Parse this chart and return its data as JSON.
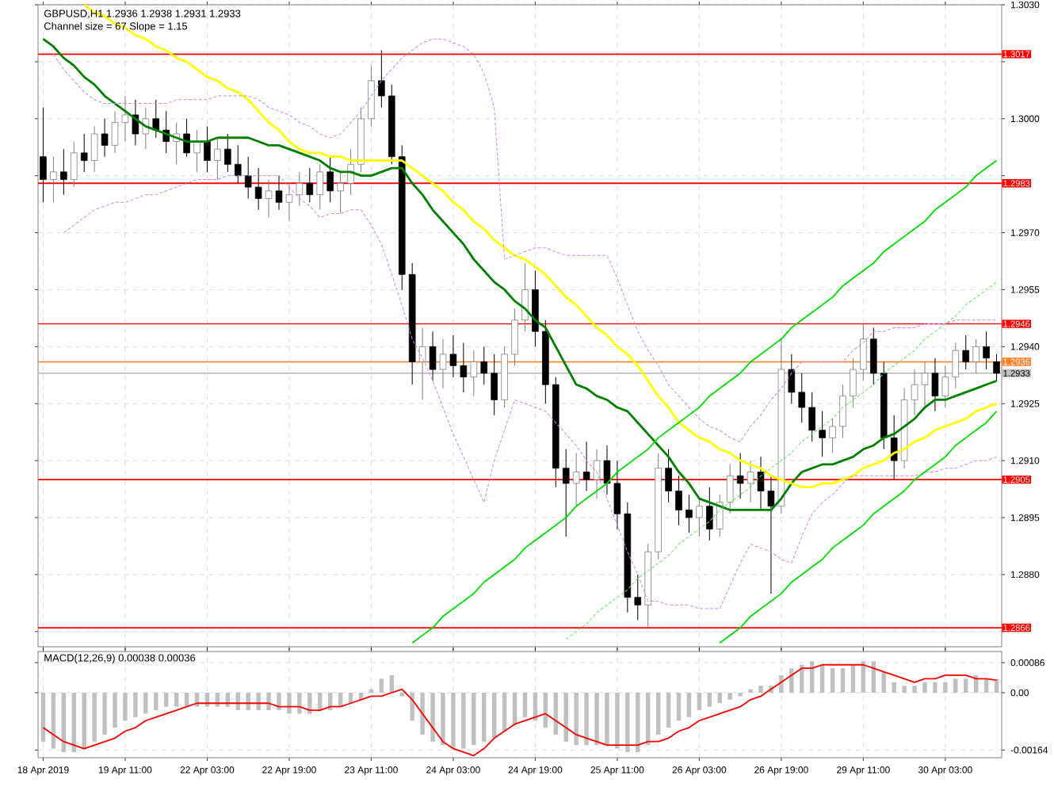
{
  "chart_data": [
    {
      "type": "candlestick",
      "title": "GBPUSD,H1  1.2936 1.2938 1.2931 1.2933",
      "subtitle": "Channel size = 67 Slope = 1.15",
      "categories": [
        null,
        null,
        null,
        null,
        null,
        null,
        null,
        null,
        null,
        null,
        null,
        null,
        null,
        null,
        null,
        null,
        null,
        null,
        null,
        null,
        null,
        null,
        null,
        null,
        null,
        null,
        null,
        null,
        null,
        null,
        null,
        null,
        null,
        null,
        null,
        null,
        null,
        null,
        null,
        null,
        null,
        null,
        null,
        null,
        null,
        null,
        null,
        null,
        null,
        null,
        null,
        null,
        null,
        null,
        null,
        null,
        null,
        null,
        null,
        null,
        null,
        null,
        null,
        null,
        null,
        null,
        null,
        null,
        null,
        null,
        null,
        null,
        null,
        null,
        null,
        null,
        null,
        null,
        null,
        null,
        null,
        null,
        null,
        null,
        null,
        null,
        null,
        null,
        null,
        null,
        null,
        null,
        null,
        null
      ],
      "ohlc": [
        [
          1.299,
          1.3003,
          1.2978,
          1.2984
        ],
        [
          1.2984,
          1.299,
          1.2978,
          1.2986
        ],
        [
          1.2986,
          1.2992,
          1.298,
          1.2984
        ],
        [
          1.2984,
          1.2994,
          1.2982,
          1.2991
        ],
        [
          1.2991,
          1.2996,
          1.2986,
          1.2989
        ],
        [
          1.2989,
          1.2998,
          1.2986,
          1.2996
        ],
        [
          1.2996,
          1.3,
          1.299,
          1.2993
        ],
        [
          1.2993,
          1.3002,
          1.2991,
          1.2999
        ],
        [
          1.2999,
          1.3006,
          1.2994,
          1.3001
        ],
        [
          1.3001,
          1.3005,
          1.2993,
          1.2996
        ],
        [
          1.2996,
          1.3003,
          1.2992,
          1.3
        ],
        [
          1.3,
          1.3005,
          1.2995,
          1.2997
        ],
        [
          1.2997,
          1.3002,
          1.2991,
          1.2994
        ],
        [
          1.2994,
          1.2999,
          1.2988,
          1.2996
        ],
        [
          1.2996,
          1.3,
          1.299,
          1.2991
        ],
        [
          1.2991,
          1.2997,
          1.2986,
          1.2994
        ],
        [
          1.2994,
          1.2998,
          1.2986,
          1.2989
        ],
        [
          1.2989,
          1.2995,
          1.2984,
          1.2992
        ],
        [
          1.2992,
          1.2996,
          1.2986,
          1.2988
        ],
        [
          1.2988,
          1.2993,
          1.2983,
          1.2985
        ],
        [
          1.2985,
          1.299,
          1.2979,
          1.2982
        ],
        [
          1.2982,
          1.2987,
          1.2976,
          1.2979
        ],
        [
          1.2979,
          1.2984,
          1.2974,
          1.2981
        ],
        [
          1.2981,
          1.2985,
          1.2976,
          1.2978
        ],
        [
          1.2978,
          1.2983,
          1.2973,
          1.298
        ],
        [
          1.298,
          1.2986,
          1.2977,
          1.2983
        ],
        [
          1.2983,
          1.2987,
          1.2978,
          1.298
        ],
        [
          1.298,
          1.2988,
          1.2976,
          1.2986
        ],
        [
          1.2986,
          1.299,
          1.2978,
          1.2981
        ],
        [
          1.2981,
          1.2986,
          1.2975,
          1.2983
        ],
        [
          1.2983,
          1.2992,
          1.298,
          1.2988
        ],
        [
          1.2988,
          1.3003,
          1.2986,
          1.3
        ],
        [
          1.3,
          1.3014,
          1.2998,
          1.301
        ],
        [
          1.301,
          1.3018,
          1.3003,
          1.3006
        ],
        [
          1.3006,
          1.3009,
          1.2988,
          1.299
        ],
        [
          1.299,
          1.2993,
          1.2955,
          1.2959
        ],
        [
          1.2959,
          1.2962,
          1.293,
          1.2936
        ],
        [
          1.2936,
          1.2945,
          1.2926,
          1.294
        ],
        [
          1.294,
          1.2944,
          1.2931,
          1.2934
        ],
        [
          1.2934,
          1.2942,
          1.2929,
          1.2938
        ],
        [
          1.2938,
          1.2943,
          1.2932,
          1.2935
        ],
        [
          1.2935,
          1.2941,
          1.2928,
          1.2932
        ],
        [
          1.2932,
          1.2939,
          1.2927,
          1.2936
        ],
        [
          1.2936,
          1.294,
          1.293,
          1.2933
        ],
        [
          1.2933,
          1.2938,
          1.2922,
          1.2926
        ],
        [
          1.2926,
          1.294,
          1.2924,
          1.2938
        ],
        [
          1.2938,
          1.295,
          1.2935,
          1.2947
        ],
        [
          1.2947,
          1.2962,
          1.2944,
          1.2955
        ],
        [
          1.2955,
          1.296,
          1.294,
          1.2944
        ],
        [
          1.2944,
          1.2947,
          1.2925,
          1.293
        ],
        [
          1.293,
          1.2932,
          1.2903,
          1.2908
        ],
        [
          1.2908,
          1.2913,
          1.289,
          1.2904
        ],
        [
          1.2904,
          1.2912,
          1.2898,
          1.2907
        ],
        [
          1.2907,
          1.2915,
          1.2902,
          1.2905
        ],
        [
          1.2905,
          1.2913,
          1.29,
          1.291
        ],
        [
          1.291,
          1.2914,
          1.2901,
          1.2904
        ],
        [
          1.2904,
          1.291,
          1.2892,
          1.2896
        ],
        [
          1.2896,
          1.2899,
          1.287,
          1.2874
        ],
        [
          1.2874,
          1.288,
          1.2868,
          1.2872
        ],
        [
          1.2872,
          1.2888,
          1.2866,
          1.2886
        ],
        [
          1.2886,
          1.2912,
          1.2884,
          1.2908
        ],
        [
          1.2908,
          1.2913,
          1.2899,
          1.2902
        ],
        [
          1.2902,
          1.2906,
          1.2893,
          1.2897
        ],
        [
          1.2897,
          1.2901,
          1.2891,
          1.2895
        ],
        [
          1.2895,
          1.29,
          1.289,
          1.2898
        ],
        [
          1.2898,
          1.2903,
          1.2889,
          1.2892
        ],
        [
          1.2892,
          1.2901,
          1.289,
          1.2899
        ],
        [
          1.2899,
          1.2909,
          1.2896,
          1.2906
        ],
        [
          1.2906,
          1.2912,
          1.29,
          1.2904
        ],
        [
          1.2904,
          1.291,
          1.2899,
          1.2907
        ],
        [
          1.2907,
          1.2911,
          1.2897,
          1.2902
        ],
        [
          1.2902,
          1.2906,
          1.2875,
          1.2898
        ],
        [
          1.2898,
          1.2942,
          1.2896,
          1.2934
        ],
        [
          1.2934,
          1.2938,
          1.2925,
          1.2928
        ],
        [
          1.2928,
          1.2933,
          1.292,
          1.2924
        ],
        [
          1.2924,
          1.2928,
          1.2915,
          1.2918
        ],
        [
          1.2918,
          1.2923,
          1.2911,
          1.2916
        ],
        [
          1.2916,
          1.2921,
          1.2912,
          1.2919
        ],
        [
          1.2919,
          1.293,
          1.2916,
          1.2927
        ],
        [
          1.2927,
          1.2937,
          1.2924,
          1.2934
        ],
        [
          1.2934,
          1.2946,
          1.2931,
          1.2942
        ],
        [
          1.2942,
          1.2945,
          1.293,
          1.2933
        ],
        [
          1.2933,
          1.2936,
          1.2913,
          1.2916
        ],
        [
          1.2916,
          1.2922,
          1.2905,
          1.291
        ],
        [
          1.291,
          1.2929,
          1.2908,
          1.2926
        ],
        [
          1.2926,
          1.2934,
          1.2922,
          1.293
        ],
        [
          1.293,
          1.2936,
          1.2924,
          1.2933
        ],
        [
          1.2933,
          1.2937,
          1.2923,
          1.2927
        ],
        [
          1.2927,
          1.2935,
          1.2924,
          1.2932
        ],
        [
          1.2932,
          1.2941,
          1.2929,
          1.2939
        ],
        [
          1.2939,
          1.2943,
          1.2934,
          1.2936
        ],
        [
          1.2936,
          1.2942,
          1.2933,
          1.294
        ],
        [
          1.294,
          1.2944,
          1.2934,
          1.2937
        ],
        [
          1.2936,
          1.2938,
          1.2931,
          1.2933
        ]
      ],
      "series": [
        {
          "type": "line",
          "color": "#008000",
          "line_style": "solid",
          "values": [
            1.3021,
            1.3019,
            1.3016,
            1.3014,
            1.3011,
            1.3009,
            1.3006,
            1.3004,
            1.3002,
            1.3,
            1.2998,
            1.2997,
            1.2996,
            1.2995,
            1.2994,
            1.2994,
            1.2994,
            1.2995,
            1.2995,
            1.2995,
            1.2995,
            1.2994,
            1.2993,
            1.2993,
            1.2992,
            1.2991,
            1.299,
            1.2989,
            1.2987,
            1.2986,
            1.2986,
            1.2985,
            1.2985,
            1.2986,
            1.2987,
            1.2987,
            1.2983,
            1.298,
            1.2976,
            1.2973,
            1.297,
            1.2967,
            1.2963,
            1.296,
            1.2957,
            1.2955,
            1.2952,
            1.295,
            1.2947,
            1.2945,
            1.294,
            1.2935,
            1.293,
            1.2929,
            1.2927,
            1.2926,
            1.2924,
            1.2923,
            1.292,
            1.2917,
            1.2914,
            1.2911,
            1.2907,
            1.2904,
            1.29,
            1.2899,
            1.2898,
            1.2897,
            1.2897,
            1.2897,
            1.2897,
            1.2897,
            1.29,
            1.2904,
            1.2907,
            1.2908,
            1.2909,
            1.2909,
            1.291,
            1.2911,
            1.2913,
            1.2914,
            1.2916,
            1.2917,
            1.2919,
            1.2921,
            1.2924,
            1.2926,
            1.2926,
            1.2927,
            1.2928,
            1.2929,
            1.293,
            1.2931
          ]
        },
        {
          "type": "line",
          "color": "#ffff00",
          "line_style": "solid",
          "values": [
            null,
            null,
            null,
            null,
            1.303,
            1.3028,
            1.3027,
            1.3025,
            1.3024,
            1.3022,
            1.3021,
            1.3019,
            1.3018,
            1.3016,
            1.3015,
            1.3013,
            1.3011,
            1.301,
            1.3008,
            1.3007,
            1.3005,
            1.3002,
            1.2999,
            1.2997,
            1.2994,
            1.2992,
            1.2991,
            1.2991,
            1.299,
            1.299,
            1.2989,
            1.2989,
            1.2989,
            1.2989,
            1.2989,
            1.2989,
            1.2987,
            1.2985,
            1.2983,
            1.2981,
            1.2978,
            1.2976,
            1.2973,
            1.2971,
            1.2968,
            1.2966,
            1.2964,
            1.2963,
            1.2961,
            1.2959,
            1.2956,
            1.2953,
            1.2951,
            1.2948,
            1.2945,
            1.2943,
            1.294,
            1.2938,
            1.2935,
            1.2931,
            1.2927,
            1.2924,
            1.292,
            1.2918,
            1.2916,
            1.2915,
            1.2913,
            1.2912,
            1.291,
            1.2909,
            1.2908,
            1.2906,
            1.2905,
            1.2904,
            1.2903,
            1.2903,
            1.2904,
            1.2904,
            1.2905,
            1.2906,
            1.2908,
            1.2909,
            1.291,
            1.2912,
            1.2913,
            1.2915,
            1.2916,
            1.2918,
            1.2919,
            1.292,
            1.2921,
            1.2923,
            1.2924,
            1.2925
          ]
        },
        {
          "type": "line",
          "color": "#cc88ee",
          "line_style": "dashed",
          "values": [
            null,
            1.3017,
            1.3013,
            1.301,
            1.3007,
            1.3005,
            1.3004,
            1.3004,
            1.3004,
            1.3004,
            1.3004,
            1.3004,
            1.3004,
            1.3005,
            1.3005,
            1.3005,
            1.3005,
            1.3006,
            1.3006,
            1.3006,
            1.3006,
            1.3005,
            1.3003,
            1.3002,
            1.3001,
            1.2999,
            1.2998,
            1.2996,
            1.2995,
            1.2996,
            1.2999,
            1.3002,
            1.3006,
            1.301,
            1.3013,
            1.3016,
            1.3018,
            1.302,
            1.3021,
            1.3021,
            1.302,
            1.3019,
            1.3017,
            1.3012,
            1.3003,
            1.2963,
            1.2964,
            1.2965,
            1.2966,
            1.2966,
            1.2965,
            1.2964,
            1.2964,
            1.2964,
            1.2964,
            1.2964,
            1.2958,
            1.2951,
            1.2944,
            1.2939,
            1.2935,
            1.293,
            1.2927,
            1.2924,
            1.2921,
            1.2919,
            1.2918,
            1.2916,
            1.2915,
            1.2919,
            1.2922,
            1.2926,
            1.2929,
            1.2933,
            1.2936,
            1.2936,
            1.2936,
            1.2936,
            1.2936,
            1.2939,
            1.2941,
            1.2944,
            1.2944,
            1.2945,
            1.2945,
            1.2945,
            1.2946,
            1.2946,
            1.2946,
            1.2947,
            1.2947,
            1.2947,
            1.2947,
            1.2947
          ]
        },
        {
          "type": "line",
          "color": "#cc88ee",
          "line_style": "dashed",
          "values": [
            null,
            null,
            1.297,
            1.2972,
            1.2974,
            1.2976,
            1.2977,
            1.2978,
            1.2978,
            1.2979,
            1.298,
            1.298,
            1.2981,
            1.2982,
            1.2983,
            1.2984,
            1.2984,
            1.2984,
            1.2985,
            1.2985,
            1.2985,
            1.2985,
            1.2985,
            1.2985,
            1.2982,
            1.2979,
            1.2977,
            1.2974,
            1.2975,
            1.2975,
            1.2976,
            1.2976,
            1.2972,
            1.2967,
            1.2959,
            1.2951,
            1.2942,
            1.2937,
            1.2931,
            1.2924,
            1.2917,
            1.2911,
            1.2905,
            1.2899,
            1.291,
            1.2918,
            1.2926,
            1.2925,
            1.2924,
            1.2923,
            1.292,
            1.2917,
            1.2914,
            1.291,
            1.2907,
            1.29,
            1.2893,
            1.2886,
            1.288,
            1.2873,
            1.2873,
            1.2872,
            1.2872,
            1.2872,
            1.2871,
            1.2871,
            1.2871,
            1.2877,
            1.2883,
            1.2888,
            1.2887,
            1.2886,
            1.2884,
            1.2883,
            1.289,
            1.2896,
            1.2899,
            1.2901,
            1.2904,
            1.2906,
            1.2906,
            1.2906,
            1.2906,
            1.2906,
            1.2906,
            1.2906,
            1.2907,
            1.2907,
            1.2908,
            1.2908,
            1.2909,
            1.291,
            1.291,
            1.2911
          ]
        },
        {
          "type": "line",
          "color": "#00e000",
          "line_style": "solid",
          "values": [
            null,
            null,
            null,
            null,
            null,
            null,
            null,
            null,
            null,
            null,
            null,
            null,
            null,
            null,
            null,
            null,
            null,
            null,
            null,
            null,
            null,
            null,
            null,
            null,
            null,
            null,
            null,
            null,
            null,
            null,
            null,
            null,
            null,
            null,
            null,
            null,
            1.2862,
            1.2864,
            1.2866,
            1.2869,
            1.2871,
            1.2873,
            1.2875,
            1.2878,
            1.288,
            1.2882,
            1.2884,
            1.2887,
            1.2889,
            1.2891,
            1.2893,
            1.2895,
            1.2898,
            1.29,
            1.2902,
            1.2904,
            1.2907,
            1.2909,
            1.2911,
            1.2913,
            1.2916,
            1.2918,
            1.292,
            1.2922,
            1.2924,
            1.2927,
            1.2929,
            1.2931,
            1.2933,
            1.2936,
            1.2938,
            1.294,
            1.2942,
            1.2945,
            1.2947,
            1.2949,
            1.2951,
            1.2953,
            1.2956,
            1.2958,
            1.296,
            1.2962,
            1.2965,
            1.2967,
            1.2969,
            1.2971,
            1.2973,
            1.2976,
            1.2978,
            1.298,
            1.2982,
            1.2985,
            1.2987,
            1.2989
          ]
        },
        {
          "type": "line",
          "color": "#00e000",
          "line_style": "solid",
          "values": [
            null,
            null,
            null,
            null,
            null,
            null,
            null,
            null,
            null,
            null,
            null,
            null,
            null,
            null,
            null,
            null,
            null,
            null,
            null,
            null,
            null,
            null,
            null,
            null,
            null,
            null,
            null,
            null,
            null,
            null,
            null,
            null,
            null,
            null,
            null,
            null,
            null,
            null,
            null,
            null,
            null,
            null,
            null,
            null,
            null,
            null,
            null,
            null,
            null,
            null,
            null,
            null,
            null,
            null,
            null,
            null,
            null,
            null,
            null,
            null,
            null,
            null,
            null,
            null,
            null,
            null,
            1.2862,
            1.2864,
            1.2866,
            1.2869,
            1.2871,
            1.2873,
            1.2875,
            1.2878,
            1.288,
            1.2882,
            1.2884,
            1.2887,
            1.2889,
            1.2891,
            1.2893,
            1.2896,
            1.2898,
            1.29,
            1.2902,
            1.2905,
            1.2907,
            1.2909,
            1.2911,
            1.2914,
            1.2916,
            1.2918,
            1.292,
            1.2923
          ]
        },
        {
          "type": "line",
          "color": "#66e066",
          "line_style": "dashed",
          "values": [
            null,
            null,
            null,
            null,
            null,
            null,
            null,
            null,
            null,
            null,
            null,
            null,
            null,
            null,
            null,
            null,
            null,
            null,
            null,
            null,
            null,
            null,
            null,
            null,
            null,
            null,
            null,
            null,
            null,
            null,
            null,
            null,
            null,
            null,
            null,
            null,
            null,
            null,
            null,
            null,
            null,
            null,
            null,
            null,
            null,
            null,
            null,
            null,
            null,
            null,
            null,
            1.2863,
            1.2865,
            1.2867,
            1.287,
            1.2872,
            1.2874,
            1.2876,
            1.2879,
            1.2881,
            1.2883,
            1.2885,
            1.2888,
            1.289,
            1.2892,
            1.2894,
            1.2897,
            1.2899,
            1.2901,
            1.2903,
            1.2906,
            1.2908,
            1.291,
            1.2912,
            1.2915,
            1.2917,
            1.2919,
            1.2921,
            1.2924,
            1.2926,
            1.2928,
            1.293,
            1.2933,
            1.2935,
            1.2937,
            1.2939,
            1.2942,
            1.2944,
            1.2946,
            1.2948,
            1.2951,
            1.2953,
            1.2955,
            1.2957
          ]
        }
      ],
      "ylim": [
        1.2861,
        1.303
      ],
      "yticks": [
        {
          "value": 1.303,
          "label": "1.3030"
        },
        {
          "value": 1.3015,
          "label": null
        },
        {
          "value": 1.3,
          "label": "1.3000"
        },
        {
          "value": 1.2985,
          "label": null
        },
        {
          "value": 1.297,
          "label": "1.2970"
        },
        {
          "value": 1.2955,
          "label": "1.2955"
        },
        {
          "value": 1.294,
          "label": "1.2940"
        },
        {
          "value": 1.2925,
          "label": "1.2925"
        },
        {
          "value": 1.291,
          "label": "1.2910"
        },
        {
          "value": 1.2895,
          "label": "1.2895"
        },
        {
          "value": 1.288,
          "label": "1.2880"
        },
        {
          "value": 1.2865,
          "label": null
        }
      ],
      "ref_lines": [
        {
          "axis": "y",
          "value": 1.3017,
          "label": "1.3017",
          "color": "#ff0000"
        },
        {
          "axis": "y",
          "value": 1.2983,
          "label": "1.2983",
          "color": "#ff0000"
        },
        {
          "axis": "y",
          "value": 1.2946,
          "label": "1.2946",
          "color": "#ff0000"
        },
        {
          "axis": "y",
          "value": 1.2936,
          "label": "1.2936",
          "color": "#ff7f27"
        },
        {
          "axis": "y",
          "value": 1.2933,
          "label": "1.2933",
          "color": "#c0c0c0"
        },
        {
          "axis": "y",
          "value": 1.2905,
          "label": "1.2905",
          "color": "#ff0000"
        },
        {
          "axis": "y",
          "value": 1.2866,
          "label": "1.2866",
          "color": "#ff0000"
        }
      ],
      "grid": true,
      "tick_labels": "y"
    },
    {
      "type": "bar",
      "title": "MACD(12,26,9) 0.00038 0.00036",
      "categories": [
        "18 Apr 2019",
        null,
        null,
        null,
        null,
        null,
        null,
        null,
        "19 Apr 11:00",
        null,
        null,
        null,
        null,
        null,
        null,
        null,
        "22 Apr 03:00",
        null,
        null,
        null,
        null,
        null,
        null,
        null,
        "22 Apr 19:00",
        null,
        null,
        null,
        null,
        null,
        null,
        null,
        "23 Apr 11:00",
        null,
        null,
        null,
        null,
        null,
        null,
        null,
        "24 Apr 03:00",
        null,
        null,
        null,
        null,
        null,
        null,
        null,
        "24 Apr 19:00",
        null,
        null,
        null,
        null,
        null,
        null,
        null,
        "25 Apr 11:00",
        null,
        null,
        null,
        null,
        null,
        null,
        null,
        "26 Apr 03:00",
        null,
        null,
        null,
        null,
        null,
        null,
        null,
        "26 Apr 19:00",
        null,
        null,
        null,
        null,
        null,
        null,
        null,
        "29 Apr 11:00",
        null,
        null,
        null,
        null,
        null,
        null,
        null,
        "30 Apr 03:00",
        null,
        null,
        null,
        null,
        null
      ],
      "series": [
        {
          "type": "bar",
          "color": "#c0c0c0",
          "values": [
            -0.0014,
            -0.0016,
            -0.0017,
            -0.0017,
            -0.0016,
            -0.0014,
            -0.0012,
            -0.001,
            -0.0008,
            -0.0007,
            -0.0006,
            -0.0005,
            -0.0004,
            -0.0004,
            -0.0004,
            -0.0004,
            -0.0004,
            -0.0004,
            -0.0004,
            -0.0005,
            -0.0005,
            -0.0005,
            -0.0005,
            -0.0005,
            -0.0006,
            -0.0006,
            -0.0006,
            -0.0005,
            -0.0005,
            -0.0004,
            -0.0003,
            -0.0002,
            0.0001,
            0.0004,
            0.0005,
            -0.0001,
            -0.0008,
            -0.0012,
            -0.0014,
            -0.0015,
            -0.0016,
            -0.0016,
            -0.0015,
            -0.0014,
            -0.0013,
            -0.0011,
            -0.0009,
            -0.0007,
            -0.0008,
            -0.001,
            -0.0012,
            -0.0014,
            -0.0015,
            -0.0015,
            -0.0015,
            -0.0015,
            -0.0016,
            -0.0017,
            -0.0017,
            -0.0015,
            -0.0012,
            -0.001,
            -0.0008,
            -0.0007,
            -0.0005,
            -0.0004,
            -0.0003,
            -0.0002,
            -0.0001,
            0.0001,
            0.0002,
            0.0002,
            0.0005,
            0.0007,
            0.0008,
            0.0009,
            0.0008,
            0.0007,
            0.0007,
            0.0008,
            0.0009,
            0.0009,
            0.0006,
            0.0003,
            0.0002,
            0.0002,
            0.0003,
            0.0003,
            0.0003,
            0.0004,
            0.0004,
            0.0005,
            0.0004,
            0.00038
          ]
        },
        {
          "type": "line",
          "color": "#ff0000",
          "line_style": "solid",
          "values": [
            -0.001,
            -0.0012,
            -0.0014,
            -0.0015,
            -0.0016,
            -0.0015,
            -0.0014,
            -0.0013,
            -0.0011,
            -0.001,
            -0.0008,
            -0.0007,
            -0.0006,
            -0.0005,
            -0.0004,
            -0.0003,
            -0.0003,
            -0.0003,
            -0.0003,
            -0.0003,
            -0.0003,
            -0.0003,
            -0.0003,
            -0.0004,
            -0.0004,
            -0.0004,
            -0.0005,
            -0.0005,
            -0.0004,
            -0.0004,
            -0.0003,
            -0.0002,
            -0.0001,
            -0.0001,
            0.0,
            0.0001,
            -0.0002,
            -0.0006,
            -0.001,
            -0.0014,
            -0.0016,
            -0.0017,
            -0.0018,
            -0.0016,
            -0.0013,
            -0.0011,
            -0.0009,
            -0.0008,
            -0.0007,
            -0.0006,
            -0.0008,
            -0.001,
            -0.0012,
            -0.0013,
            -0.0014,
            -0.0015,
            -0.0015,
            -0.0015,
            -0.0015,
            -0.0014,
            -0.0014,
            -0.0013,
            -0.0011,
            -0.001,
            -0.0008,
            -0.0007,
            -0.0006,
            -0.0005,
            -0.0004,
            -0.0002,
            -0.0001,
            0.0001,
            0.0003,
            0.0005,
            0.0007,
            0.0007,
            0.0008,
            0.0008,
            0.0008,
            0.0008,
            0.0008,
            0.0007,
            0.0006,
            0.0005,
            0.0004,
            0.0003,
            0.0004,
            0.0004,
            0.0005,
            0.0005,
            0.0005,
            0.0004,
            0.0004,
            0.00036
          ]
        }
      ],
      "ylim": [
        -0.00186,
        0.00118
      ],
      "yticks": [
        {
          "value": 0.00086,
          "label": "0.00086"
        },
        {
          "value": 0,
          "label": "0.00"
        },
        {
          "value": -0.00164,
          "label": "-0.00164"
        }
      ],
      "grid": true
    }
  ]
}
